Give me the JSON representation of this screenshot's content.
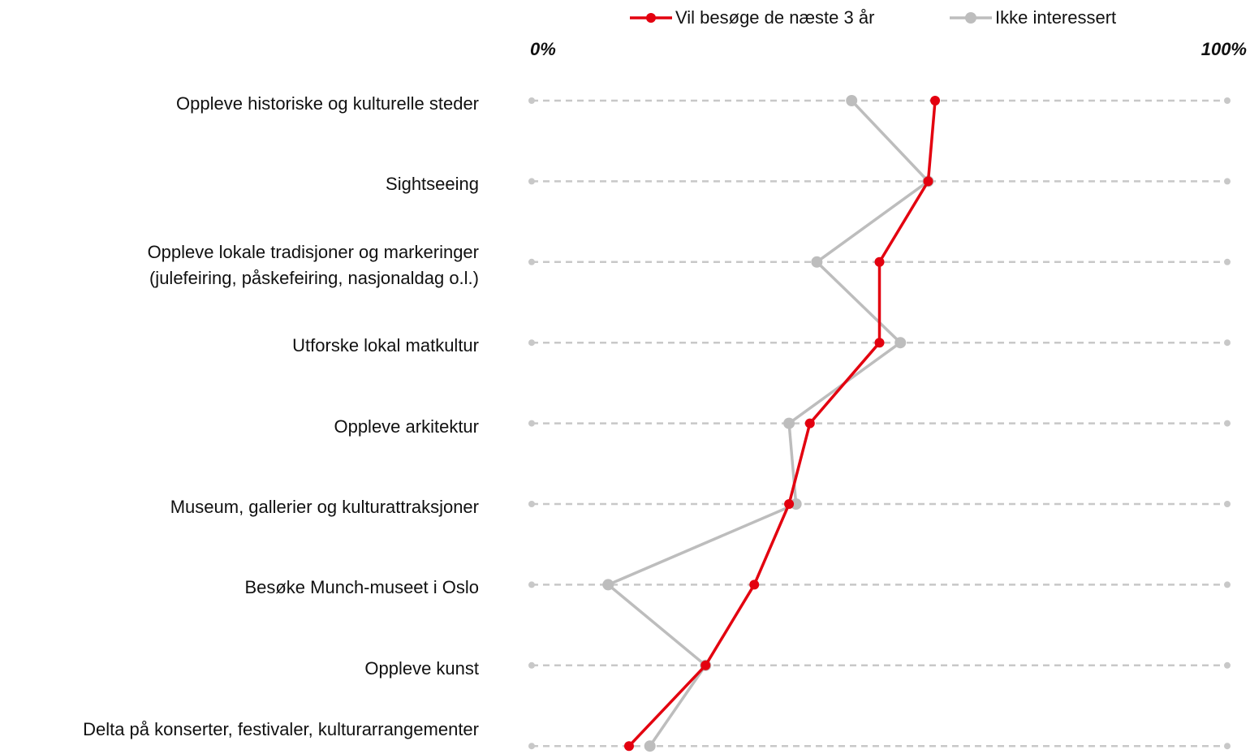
{
  "chart_data": {
    "type": "dot-line",
    "categories": [
      "Oppleve historiske og kulturelle steder",
      "Sightseeing",
      "Oppleve lokale tradisjoner og markeringer\n(julefeiring, påskefeiring, nasjonaldag o.l.)",
      "Utforske lokal matkultur",
      "Oppleve arkitektur",
      "Museum, gallerier og kulturattraksjoner",
      "Besøke Munch-museet i Oslo",
      "Oppleve kunst",
      "Delta på konserter, festivaler, kulturarrangementer"
    ],
    "series": [
      {
        "name": "Vil besøge de næste 3 år",
        "color": "#e3000f",
        "values": [
          58,
          57,
          50,
          50,
          40,
          37,
          32,
          25,
          14
        ]
      },
      {
        "name": "Ikke interessert",
        "color": "#bdbdbd",
        "values": [
          46,
          57,
          41,
          53,
          37,
          38,
          11,
          25,
          17
        ]
      }
    ],
    "xlim": [
      0,
      100
    ],
    "xticks": [
      {
        "value": 0,
        "label": "0%"
      },
      {
        "value": 100,
        "label": "100%"
      }
    ],
    "legend": "top"
  }
}
